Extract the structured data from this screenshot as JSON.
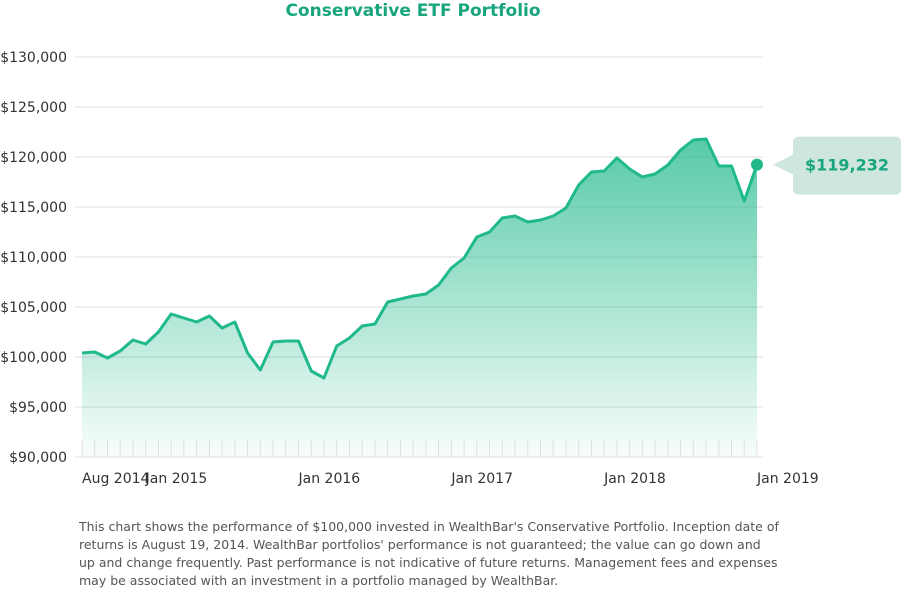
{
  "chart_data": {
    "type": "line",
    "title": "Conservative ETF Portfolio",
    "categories": [
      "Aug 2014",
      null,
      null,
      null,
      null,
      "Jan 2015",
      null,
      null,
      null,
      null,
      null,
      null,
      null,
      null,
      null,
      null,
      null,
      "Jan 2016",
      null,
      null,
      null,
      null,
      null,
      null,
      null,
      null,
      null,
      null,
      null,
      "Jan 2017",
      null,
      null,
      null,
      null,
      null,
      null,
      null,
      null,
      null,
      null,
      null,
      "Jan 2018",
      null,
      null,
      null,
      null,
      null,
      null,
      null,
      null,
      null,
      null,
      null,
      "Jan 2019"
    ],
    "series": [
      {
        "name": "Conservative ETF Portfolio",
        "color": "#1fb98b",
        "values": [
          100400,
          100500,
          99900,
          100600,
          101700,
          101300,
          102500,
          104300,
          103900,
          103500,
          104100,
          102900,
          103500,
          100400,
          98700,
          101500,
          101600,
          101600,
          98600,
          97900,
          101100,
          101900,
          103100,
          103300,
          105500,
          105800,
          106100,
          106300,
          107200,
          108900,
          109900,
          112000,
          112500,
          113900,
          114100,
          113500,
          113700,
          114100,
          114900,
          117200,
          118500,
          118600,
          119900,
          118800,
          118000,
          118300,
          119200,
          120700,
          121700,
          121800,
          119100,
          119100,
          115600,
          119232
        ],
        "value_labels": [
          null,
          null,
          null,
          null,
          null,
          null,
          null,
          null,
          null,
          null,
          null,
          null,
          null,
          null,
          null,
          null,
          null,
          null,
          null,
          null,
          null,
          null,
          null,
          null,
          null,
          null,
          null,
          null,
          null,
          null,
          null,
          null,
          null,
          null,
          null,
          null,
          null,
          null,
          null,
          null,
          null,
          null,
          null,
          null,
          null,
          null,
          null,
          null,
          null,
          null,
          null,
          null,
          null,
          "$119,232"
        ]
      }
    ],
    "ylim": [
      90000,
      130000
    ],
    "yticks": [
      {
        "value": 90000,
        "label": "$90,000"
      },
      {
        "value": 95000,
        "label": "$95,000"
      },
      {
        "value": 100000,
        "label": "$100,000"
      },
      {
        "value": 105000,
        "label": "$105,000"
      },
      {
        "value": 110000,
        "label": "$110,000"
      },
      {
        "value": 115000,
        "label": "$115,000"
      },
      {
        "value": 120000,
        "label": "$120,000"
      },
      {
        "value": 125000,
        "label": "$125,000"
      },
      {
        "value": 130000,
        "label": "$130,000"
      }
    ],
    "grid": true,
    "note": "This chart shows the performance of $100,000 invested in WealthBar's Conservative Portfolio. Inception date of returns is August 19, 2014. WealthBar portfolios' performance is not guaranteed; the value can go down and up and change frequently. Past performance is not indicative of future returns. Management fees and expenses may be associated with an investment in a portfolio managed by WealthBar."
  }
}
